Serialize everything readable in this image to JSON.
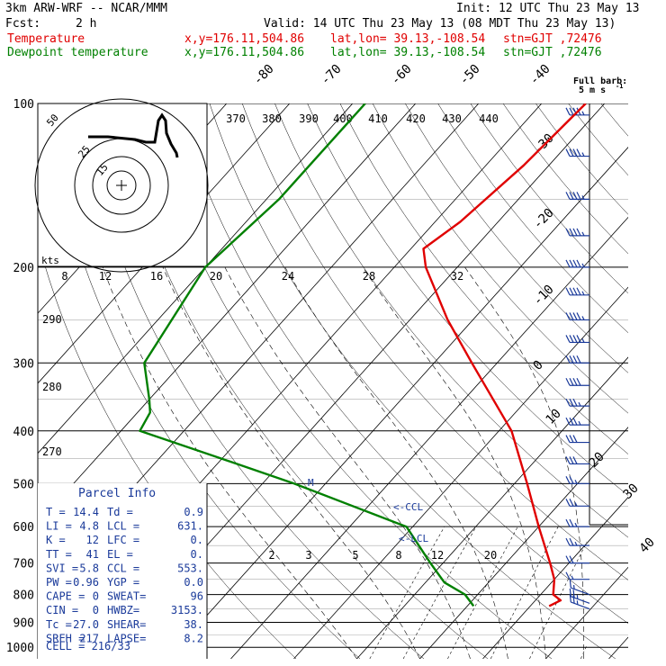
{
  "header": {
    "model": "3km ARW-WRF -- NCAR/MMM",
    "init": "Init: 12 UTC Thu 23 May 13",
    "fcst_label": "Fcst:",
    "fcst_value": "2 h",
    "valid": "Valid: 14 UTC Thu 23 May 13 (08 MDT Thu 23 May 13)"
  },
  "legend": {
    "temperature": {
      "label": "Temperature",
      "xy": "x,y=176.11,504.86",
      "latlon": "lat,lon= 39.13,-108.54",
      "stn": "stn=GJT ,72476",
      "color": "#e00000"
    },
    "dewpoint": {
      "label": "Dewpoint temperature",
      "xy": "x,y=176.11,504.86",
      "latlon": "lat,lon= 39.13,-108.54",
      "stn": "stn=GJT ,72476",
      "color": "#008000"
    }
  },
  "barb_key": {
    "title": "Full barb:",
    "value": "5 m s",
    "exponent": "-1"
  },
  "parcel_info": {
    "title": "Parcel Info",
    "rows": [
      [
        "T  =",
        "14.4",
        "Td =",
        "0.9"
      ],
      [
        "LI =",
        "4.8",
        "LCL =",
        "631."
      ],
      [
        "K  =",
        "12",
        "LFC =",
        "0."
      ],
      [
        "TT =",
        "41",
        "EL  =",
        "0."
      ],
      [
        "SVI =",
        "5.8",
        "CCL =",
        "553."
      ],
      [
        "PW =",
        "0.96",
        "YGP =",
        "0.0"
      ],
      [
        "CAPE =",
        "0",
        "SWEAT=",
        "96"
      ],
      [
        "CIN =",
        "0",
        "HWBZ=",
        "3153."
      ],
      [
        "Tc =",
        "27.0",
        "SHEAR=",
        "38."
      ],
      [
        "SREH =",
        "217",
        "LAPSE=",
        "8.2"
      ]
    ],
    "cell": "CELL = 216/33"
  },
  "level_markers": {
    "ccl": "<-CCL",
    "lcl": "<-LCL",
    "m": "M"
  },
  "hodograph": {
    "unit_label": "kts",
    "ring_labels": [
      "15",
      "25",
      "50"
    ]
  },
  "chart_data": {
    "type": "line",
    "title": "",
    "xlabel": "",
    "ylabel": "",
    "y_axis_pressure_labels": [
      "100",
      "200",
      "300",
      "400",
      "500",
      "600",
      "700",
      "800",
      "900",
      "1000"
    ],
    "isotherm_labels": [
      "-80",
      "-70",
      "-60",
      "-50",
      "-40",
      "-30",
      "-20",
      "-10",
      "0",
      "10",
      "20",
      "30",
      "40"
    ],
    "dry_adiabat_labels_top": [
      "370",
      "380",
      "390",
      "400",
      "410",
      "420",
      "430",
      "440"
    ],
    "dry_adiabat_labels_left": [
      "290",
      "280",
      "270"
    ],
    "mixing_ratio_labels_mid": [
      "8",
      "12",
      "16",
      "20",
      "24",
      "28",
      "32"
    ],
    "mixing_ratio_labels_low": [
      "2",
      "3",
      "5",
      "8",
      "12",
      "20"
    ],
    "series": [
      {
        "name": "Temperature",
        "color": "#e00000",
        "points": [
          [
            100,
            -53
          ],
          [
            130,
            -54
          ],
          [
            165,
            -56
          ],
          [
            185,
            -58
          ],
          [
            200,
            -55
          ],
          [
            250,
            -44
          ],
          [
            300,
            -34
          ],
          [
            400,
            -18
          ],
          [
            500,
            -8
          ],
          [
            600,
            0
          ],
          [
            700,
            7
          ],
          [
            750,
            10
          ],
          [
            800,
            12
          ],
          [
            820,
            14
          ],
          [
            840,
            13
          ]
        ]
      },
      {
        "name": "Dewpoint temperature",
        "color": "#008000",
        "points": [
          [
            100,
            -88
          ],
          [
            150,
            -88
          ],
          [
            200,
            -90
          ],
          [
            300,
            -86
          ],
          [
            350,
            -80
          ],
          [
            370,
            -78
          ],
          [
            400,
            -77
          ],
          [
            450,
            -60
          ],
          [
            500,
            -45
          ],
          [
            600,
            -21
          ],
          [
            700,
            -12
          ],
          [
            760,
            -7
          ],
          [
            800,
            -2
          ],
          [
            840,
            1
          ]
        ]
      }
    ],
    "wind_barbs": [
      {
        "p": 105,
        "speed_ms": 22
      },
      {
        "p": 125,
        "speed_ms": 22
      },
      {
        "p": 150,
        "speed_ms": 22
      },
      {
        "p": 175,
        "speed_ms": 22
      },
      {
        "p": 200,
        "speed_ms": 22
      },
      {
        "p": 225,
        "speed_ms": 22
      },
      {
        "p": 250,
        "speed_ms": 22
      },
      {
        "p": 275,
        "speed_ms": 22
      },
      {
        "p": 300,
        "speed_ms": 20
      },
      {
        "p": 330,
        "speed_ms": 20
      },
      {
        "p": 360,
        "speed_ms": 18
      },
      {
        "p": 390,
        "speed_ms": 18
      },
      {
        "p": 420,
        "speed_ms": 15
      },
      {
        "p": 460,
        "speed_ms": 15
      },
      {
        "p": 500,
        "speed_ms": 12
      },
      {
        "p": 550,
        "speed_ms": 12
      },
      {
        "p": 600,
        "speed_ms": 12
      },
      {
        "p": 650,
        "speed_ms": 12
      },
      {
        "p": 700,
        "speed_ms": 10
      },
      {
        "p": 750,
        "speed_ms": 8
      },
      {
        "p": 800,
        "speed_ms": 8
      },
      {
        "p": 830,
        "speed_ms": 12
      },
      {
        "p": 850,
        "speed_ms": 12
      }
    ]
  }
}
